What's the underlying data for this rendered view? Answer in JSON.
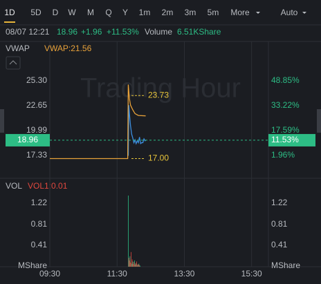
{
  "tabs": [
    "1D",
    "5D",
    "D",
    "W",
    "M",
    "Q",
    "Y",
    "1m",
    "2m",
    "3m",
    "5m",
    "More",
    "Auto"
  ],
  "header": {
    "datetime": "08/07 12:21",
    "price": "18.96",
    "change": "+1.96",
    "change_pct": "+11.53%",
    "volume_label": "Volume",
    "volume": "6.51KShare"
  },
  "watermark": "Trading Hour",
  "chart_data": [
    {
      "type": "line",
      "vwap_label": "VWAP:21.56",
      "series": [
        {
          "color": "#3d8fe0",
          "x": [
            710,
            711,
            712,
            714,
            716,
            718,
            720,
            722,
            724,
            726,
            728,
            730,
            732,
            734,
            736,
            738,
            740,
            741
          ],
          "values": [
            17.3,
            22.7,
            21.8,
            20.5,
            19.6,
            19.2,
            18.7,
            19.0,
            18.6,
            18.9,
            18.7,
            19.3,
            18.6,
            18.7,
            18.7,
            19.1,
            18.9,
            18.96
          ]
        },
        {
          "name": "VWAP",
          "color": "#e8a23a",
          "x": [
            570,
            709,
            710,
            712,
            714,
            718,
            722,
            728,
            741
          ],
          "values": [
            17.0,
            17.0,
            24.9,
            23.4,
            22.7,
            22.2,
            21.8,
            21.6,
            21.56
          ]
        }
      ],
      "annotations": [
        23.73,
        {
          "value": 17,
          "label": "17.00"
        }
      ],
      "last_price": 18.96,
      "last_pct": {
        "value": 11.53,
        "label": "11.53%"
      },
      "xlim": [
        570,
        960
      ],
      "ylim": [
        15.12,
        26.55
      ],
      "yticks": [
        {
          "value": 25.3,
          "label": "25.30"
        },
        22.65,
        19.99,
        17.33
      ],
      "y2lim": [
        -11.06,
        56.18
      ],
      "y2ticks": [
        {
          "value": 48.85,
          "label": "48.85%"
        },
        {
          "value": 33.22,
          "label": "33.22%"
        },
        {
          "value": 17.59,
          "label": "17.59%"
        },
        {
          "value": 1.96,
          "label": "1.96%"
        }
      ]
    },
    {
      "type": "bar",
      "label": "VOL",
      "indicator_label": "VOL1:0.01",
      "y_unit": "MShare",
      "x": [
        710,
        711,
        712,
        713,
        714,
        715,
        716,
        717,
        718,
        719,
        720,
        721,
        722,
        723,
        724,
        725,
        726,
        727,
        728,
        729,
        730,
        731
      ],
      "values": [
        1.36,
        0.17,
        0.12,
        0.2,
        0.08,
        0.28,
        0.06,
        0.14,
        0.1,
        0.05,
        0.09,
        0.12,
        0.04,
        0.07,
        0.06,
        0.1,
        0.03,
        0.05,
        0.04,
        0.06,
        0.03,
        0.02
      ],
      "colors": [
        "#2dbd85",
        "#e0483e",
        "#e0483e",
        "#2dbd85",
        "#e0483e",
        "#e0483e",
        "#2dbd85",
        "#e0483e",
        "#2dbd85",
        "#e0483e",
        "#e0483e",
        "#2dbd85",
        "#e0483e",
        "#e0483e",
        "#2dbd85",
        "#e0483e",
        "#2dbd85",
        "#e0483e",
        "#e0483e",
        "#2dbd85",
        "#e0483e",
        "#2dbd85"
      ],
      "xlim": [
        570,
        960
      ],
      "ylim": [
        0,
        1.4
      ],
      "yticks": [
        1.22,
        0.81,
        0.41
      ],
      "xticks": [
        {
          "value": 570,
          "label": "09:30"
        },
        {
          "value": 690,
          "label": "11:30"
        },
        {
          "value": 810,
          "label": "13:30"
        },
        {
          "value": 930,
          "label": "15:30"
        }
      ]
    }
  ]
}
